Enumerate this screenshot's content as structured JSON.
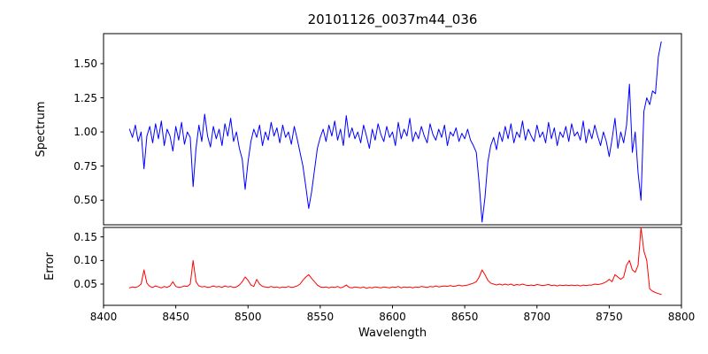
{
  "chart_data": {
    "type": "line",
    "title": "20101126_0037m44_036",
    "xlabel": "Wavelength",
    "xlim": [
      8400,
      8800
    ],
    "xticks": [
      8400,
      8450,
      8500,
      8550,
      8600,
      8650,
      8700,
      8750,
      8800
    ],
    "xtick_labels": [
      "8400",
      "8450",
      "8500",
      "8550",
      "8600",
      "8650",
      "8700",
      "8750",
      "8800"
    ],
    "grid": false,
    "legend": "none",
    "subplots": [
      {
        "name": "Spectrum",
        "ylabel": "Spectrum",
        "color": "#0000ff",
        "ylim": [
          0.32,
          1.72
        ],
        "yticks": [
          0.5,
          0.75,
          1.0,
          1.25,
          1.5
        ],
        "ytick_labels": [
          "0.50",
          "0.75",
          "1.00",
          "1.25",
          "1.50"
        ],
        "x_start": 8418,
        "x_step": 2,
        "values": [
          1.02,
          0.96,
          1.05,
          0.93,
          1.0,
          0.73,
          0.97,
          1.04,
          0.92,
          1.06,
          0.95,
          1.08,
          0.9,
          1.02,
          0.97,
          0.86,
          1.04,
          0.94,
          1.07,
          0.91,
          1.0,
          0.96,
          0.6,
          0.88,
          1.05,
          0.93,
          1.13,
          0.97,
          0.89,
          1.04,
          0.95,
          1.02,
          0.9,
          1.06,
          0.97,
          1.1,
          0.93,
          1.0,
          0.88,
          0.8,
          0.58,
          0.78,
          0.93,
          1.02,
          0.96,
          1.05,
          0.9,
          1.0,
          0.94,
          1.07,
          0.97,
          1.03,
          0.92,
          1.05,
          0.96,
          1.0,
          0.91,
          1.04,
          0.95,
          0.85,
          0.75,
          0.6,
          0.44,
          0.56,
          0.72,
          0.88,
          0.96,
          1.02,
          0.93,
          1.05,
          0.97,
          1.08,
          0.94,
          1.02,
          0.9,
          1.12,
          0.96,
          1.03,
          0.95,
          1.0,
          0.92,
          1.05,
          0.97,
          0.88,
          1.02,
          0.94,
          1.06,
          0.98,
          0.93,
          1.04,
          0.96,
          1.0,
          0.9,
          1.07,
          0.95,
          1.02,
          0.97,
          1.1,
          0.93,
          1.0,
          0.95,
          1.04,
          0.97,
          0.92,
          1.06,
          0.98,
          0.94,
          1.02,
          0.96,
          1.05,
          0.9,
          1.0,
          0.97,
          1.03,
          0.93,
          0.99,
          0.95,
          1.02,
          0.94,
          0.9,
          0.85,
          0.62,
          0.34,
          0.52,
          0.78,
          0.9,
          0.96,
          0.87,
          1.0,
          0.93,
          1.04,
          0.95,
          1.06,
          0.92,
          1.0,
          0.96,
          1.08,
          0.94,
          1.02,
          0.97,
          0.93,
          1.05,
          0.96,
          1.0,
          0.92,
          1.07,
          0.95,
          1.03,
          0.9,
          1.0,
          0.96,
          1.04,
          0.93,
          1.06,
          0.97,
          1.0,
          0.94,
          1.08,
          0.92,
          1.02,
          0.95,
          1.05,
          0.97,
          0.9,
          1.0,
          0.93,
          0.82,
          0.95,
          1.1,
          0.88,
          1.0,
          0.92,
          1.05,
          1.35,
          0.85,
          1.0,
          0.7,
          0.5,
          1.15,
          1.25,
          1.2,
          1.3,
          1.28,
          1.55,
          1.66
        ]
      },
      {
        "name": "Error",
        "ylabel": "Error",
        "color": "#ff0000",
        "ylim": [
          0.005,
          0.17
        ],
        "yticks": [
          0.05,
          0.1,
          0.15
        ],
        "ytick_labels": [
          "0.05",
          "0.10",
          "0.15"
        ],
        "x_start": 8418,
        "x_step": 2,
        "values": [
          0.042,
          0.044,
          0.043,
          0.045,
          0.05,
          0.08,
          0.052,
          0.045,
          0.043,
          0.046,
          0.044,
          0.042,
          0.045,
          0.043,
          0.046,
          0.055,
          0.045,
          0.043,
          0.044,
          0.046,
          0.045,
          0.05,
          0.1,
          0.055,
          0.046,
          0.044,
          0.045,
          0.043,
          0.044,
          0.046,
          0.044,
          0.045,
          0.043,
          0.046,
          0.044,
          0.045,
          0.043,
          0.044,
          0.048,
          0.055,
          0.065,
          0.058,
          0.048,
          0.045,
          0.06,
          0.05,
          0.045,
          0.044,
          0.043,
          0.045,
          0.043,
          0.044,
          0.042,
          0.044,
          0.043,
          0.045,
          0.043,
          0.044,
          0.046,
          0.05,
          0.058,
          0.065,
          0.07,
          0.062,
          0.055,
          0.048,
          0.044,
          0.043,
          0.044,
          0.042,
          0.044,
          0.043,
          0.045,
          0.042,
          0.044,
          0.048,
          0.043,
          0.042,
          0.044,
          0.043,
          0.042,
          0.044,
          0.041,
          0.043,
          0.042,
          0.044,
          0.043,
          0.042,
          0.044,
          0.043,
          0.042,
          0.044,
          0.043,
          0.045,
          0.042,
          0.044,
          0.043,
          0.044,
          0.042,
          0.044,
          0.043,
          0.045,
          0.044,
          0.043,
          0.045,
          0.044,
          0.046,
          0.044,
          0.045,
          0.046,
          0.045,
          0.047,
          0.045,
          0.046,
          0.048,
          0.046,
          0.047,
          0.048,
          0.05,
          0.052,
          0.055,
          0.065,
          0.08,
          0.07,
          0.058,
          0.052,
          0.05,
          0.048,
          0.05,
          0.048,
          0.05,
          0.048,
          0.05,
          0.047,
          0.049,
          0.048,
          0.05,
          0.048,
          0.047,
          0.048,
          0.047,
          0.049,
          0.048,
          0.047,
          0.048,
          0.049,
          0.047,
          0.048,
          0.046,
          0.048,
          0.047,
          0.048,
          0.047,
          0.048,
          0.047,
          0.048,
          0.046,
          0.048,
          0.047,
          0.048,
          0.048,
          0.05,
          0.049,
          0.05,
          0.052,
          0.055,
          0.06,
          0.055,
          0.07,
          0.065,
          0.06,
          0.065,
          0.09,
          0.1,
          0.08,
          0.075,
          0.09,
          0.17,
          0.12,
          0.1,
          0.04,
          0.035,
          0.032,
          0.03,
          0.028
        ]
      }
    ]
  }
}
